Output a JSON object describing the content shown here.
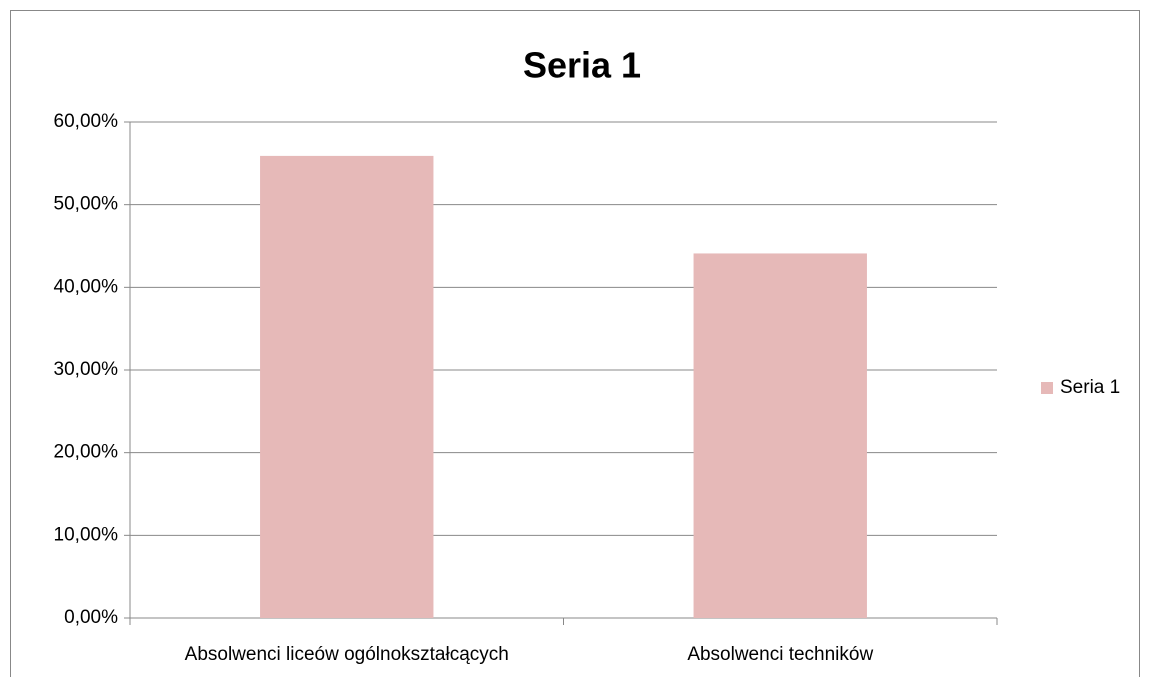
{
  "chart_data": {
    "type": "bar",
    "title": "Seria 1",
    "categories": [
      "Absolwenci liceów ogólnokształcących",
      "Absolwenci techników"
    ],
    "series": [
      {
        "name": "Seria 1",
        "color": "#e6b9b8",
        "values": [
          55.9,
          44.1
        ]
      }
    ],
    "ylim": [
      0,
      60
    ],
    "yticks": [
      {
        "value": 0,
        "label": "0,00%"
      },
      {
        "value": 10,
        "label": "10,00%"
      },
      {
        "value": 20,
        "label": "20,00%"
      },
      {
        "value": 30,
        "label": "30,00%"
      },
      {
        "value": 40,
        "label": "40,00%"
      },
      {
        "value": 50,
        "label": "50,00%"
      },
      {
        "value": 60,
        "label": "60,00%"
      }
    ],
    "grid": true,
    "legend": "right"
  }
}
